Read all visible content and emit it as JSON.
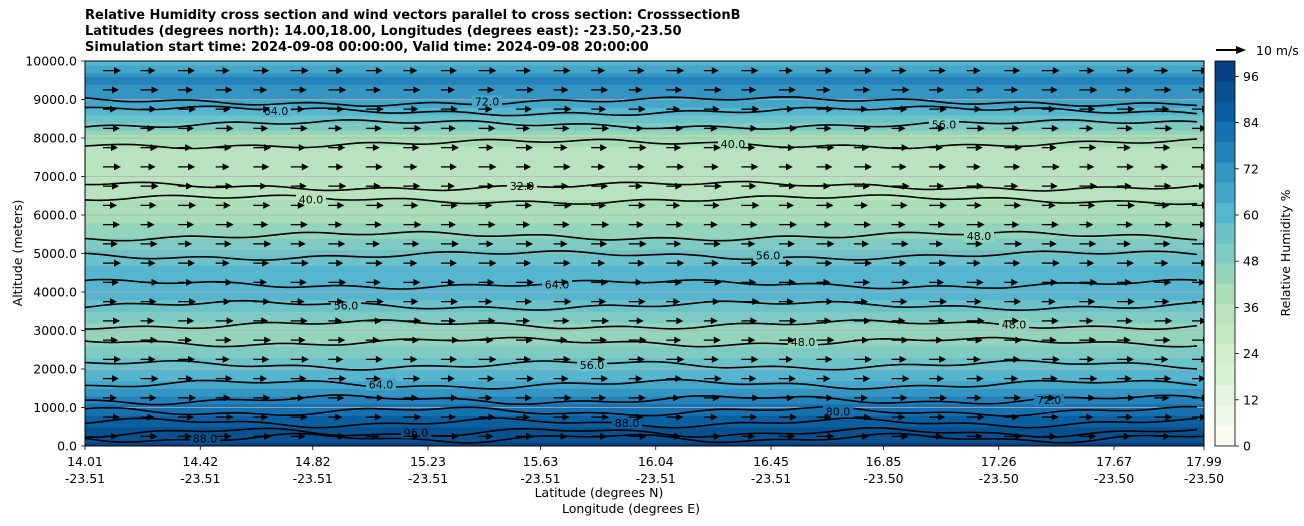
{
  "title_lines": [
    "Relative Humidity cross section and wind vectors parallel to cross section: CrosssectionB",
    "Latitudes (degrees north): 14.00,18.00, Longitudes (degrees east): -23.50,-23.50",
    "Simulation start time: 2024-09-08 00:00:00, Valid time: 2024-09-08 20:00:00"
  ],
  "chart_data": {
    "type": "heatmap",
    "ylabel": "Altitude (meters)",
    "xlabel_lat": "Latitude (degrees N)",
    "xlabel_lon": "Longitude (degrees E)",
    "ylim": [
      0,
      10000
    ],
    "y_ticks": [
      "0.0",
      "1000.0",
      "2000.0",
      "3000.0",
      "4000.0",
      "5000.0",
      "6000.0",
      "7000.0",
      "8000.0",
      "9000.0",
      "10000.0"
    ],
    "x_ticks": [
      {
        "lat": "14.01",
        "lon": "-23.51"
      },
      {
        "lat": "14.42",
        "lon": "-23.51"
      },
      {
        "lat": "14.82",
        "lon": "-23.51"
      },
      {
        "lat": "15.23",
        "lon": "-23.51"
      },
      {
        "lat": "15.63",
        "lon": "-23.51"
      },
      {
        "lat": "16.04",
        "lon": "-23.51"
      },
      {
        "lat": "16.45",
        "lon": "-23.51"
      },
      {
        "lat": "16.85",
        "lon": "-23.50"
      },
      {
        "lat": "17.26",
        "lon": "-23.50"
      },
      {
        "lat": "17.67",
        "lon": "-23.50"
      },
      {
        "lat": "17.99",
        "lon": "-23.50"
      }
    ],
    "colorbar": {
      "label": "Relative Humidity %",
      "ticks": [
        "0",
        "12",
        "24",
        "36",
        "48",
        "60",
        "72",
        "84",
        "96"
      ],
      "range": [
        0,
        100
      ],
      "colors": [
        "#f7fcf0",
        "#eef8e8",
        "#e5f5df",
        "#dbf1d6",
        "#d3eecd",
        "#c6e9c3",
        "#b8e3be",
        "#a8ddb5",
        "#94d4ba",
        "#7fcbc4",
        "#6bc2c9",
        "#56b6cf",
        "#44a7ca",
        "#3495c2",
        "#2482ba",
        "#1571af",
        "#0a5fa0",
        "#08508e",
        "#084081"
      ]
    },
    "quiver_key": "10 m/s",
    "rh_profile": [
      {
        "alt": 0,
        "rh": 96
      },
      {
        "alt": 300,
        "rh": 92
      },
      {
        "alt": 700,
        "rh": 86
      },
      {
        "alt": 1100,
        "rh": 78
      },
      {
        "alt": 1500,
        "rh": 68
      },
      {
        "alt": 2000,
        "rh": 58
      },
      {
        "alt": 2500,
        "rh": 48
      },
      {
        "alt": 3000,
        "rh": 44
      },
      {
        "alt": 3500,
        "rh": 52
      },
      {
        "alt": 4000,
        "rh": 62
      },
      {
        "alt": 4500,
        "rh": 60
      },
      {
        "alt": 5000,
        "rh": 54
      },
      {
        "alt": 5500,
        "rh": 46
      },
      {
        "alt": 6000,
        "rh": 40
      },
      {
        "alt": 6500,
        "rh": 36
      },
      {
        "alt": 7000,
        "rh": 33
      },
      {
        "alt": 7500,
        "rh": 32
      },
      {
        "alt": 8000,
        "rh": 40
      },
      {
        "alt": 8500,
        "rh": 55
      },
      {
        "alt": 9000,
        "rh": 68
      },
      {
        "alt": 9500,
        "rh": 76
      },
      {
        "alt": 10000,
        "rh": 60
      }
    ],
    "contour_lines": [
      {
        "alt": 200,
        "label": "88.0"
      },
      {
        "alt": 350,
        "label": "96.0"
      },
      {
        "alt": 600,
        "label": "88.0"
      },
      {
        "alt": 900,
        "label": "80.0"
      },
      {
        "alt": 1200,
        "label": "72.0"
      },
      {
        "alt": 1600,
        "label": "64.0"
      },
      {
        "alt": 2100,
        "label": "56.0"
      },
      {
        "alt": 2700,
        "label": "48.0"
      },
      {
        "alt": 3150,
        "label": "48.0"
      },
      {
        "alt": 3650,
        "label": "56.0"
      },
      {
        "alt": 4200,
        "label": "64.0"
      },
      {
        "alt": 4950,
        "label": "56.0"
      },
      {
        "alt": 5450,
        "label": "48.0"
      },
      {
        "alt": 6400,
        "label": "40.0"
      },
      {
        "alt": 6750,
        "label": "32.0"
      },
      {
        "alt": 7850,
        "label": "40.0"
      },
      {
        "alt": 8350,
        "label": "56.0"
      },
      {
        "alt": 8700,
        "label": "64.0"
      },
      {
        "alt": 8950,
        "label": "72.0"
      }
    ],
    "wind_rows_alt": [
      250,
      750,
      1250,
      1750,
      2250,
      2750,
      3250,
      3750,
      4250,
      4750,
      5250,
      5750,
      6250,
      6750,
      7250,
      7750,
      8250,
      8750,
      9250,
      9750
    ],
    "wind_cols": 30
  }
}
